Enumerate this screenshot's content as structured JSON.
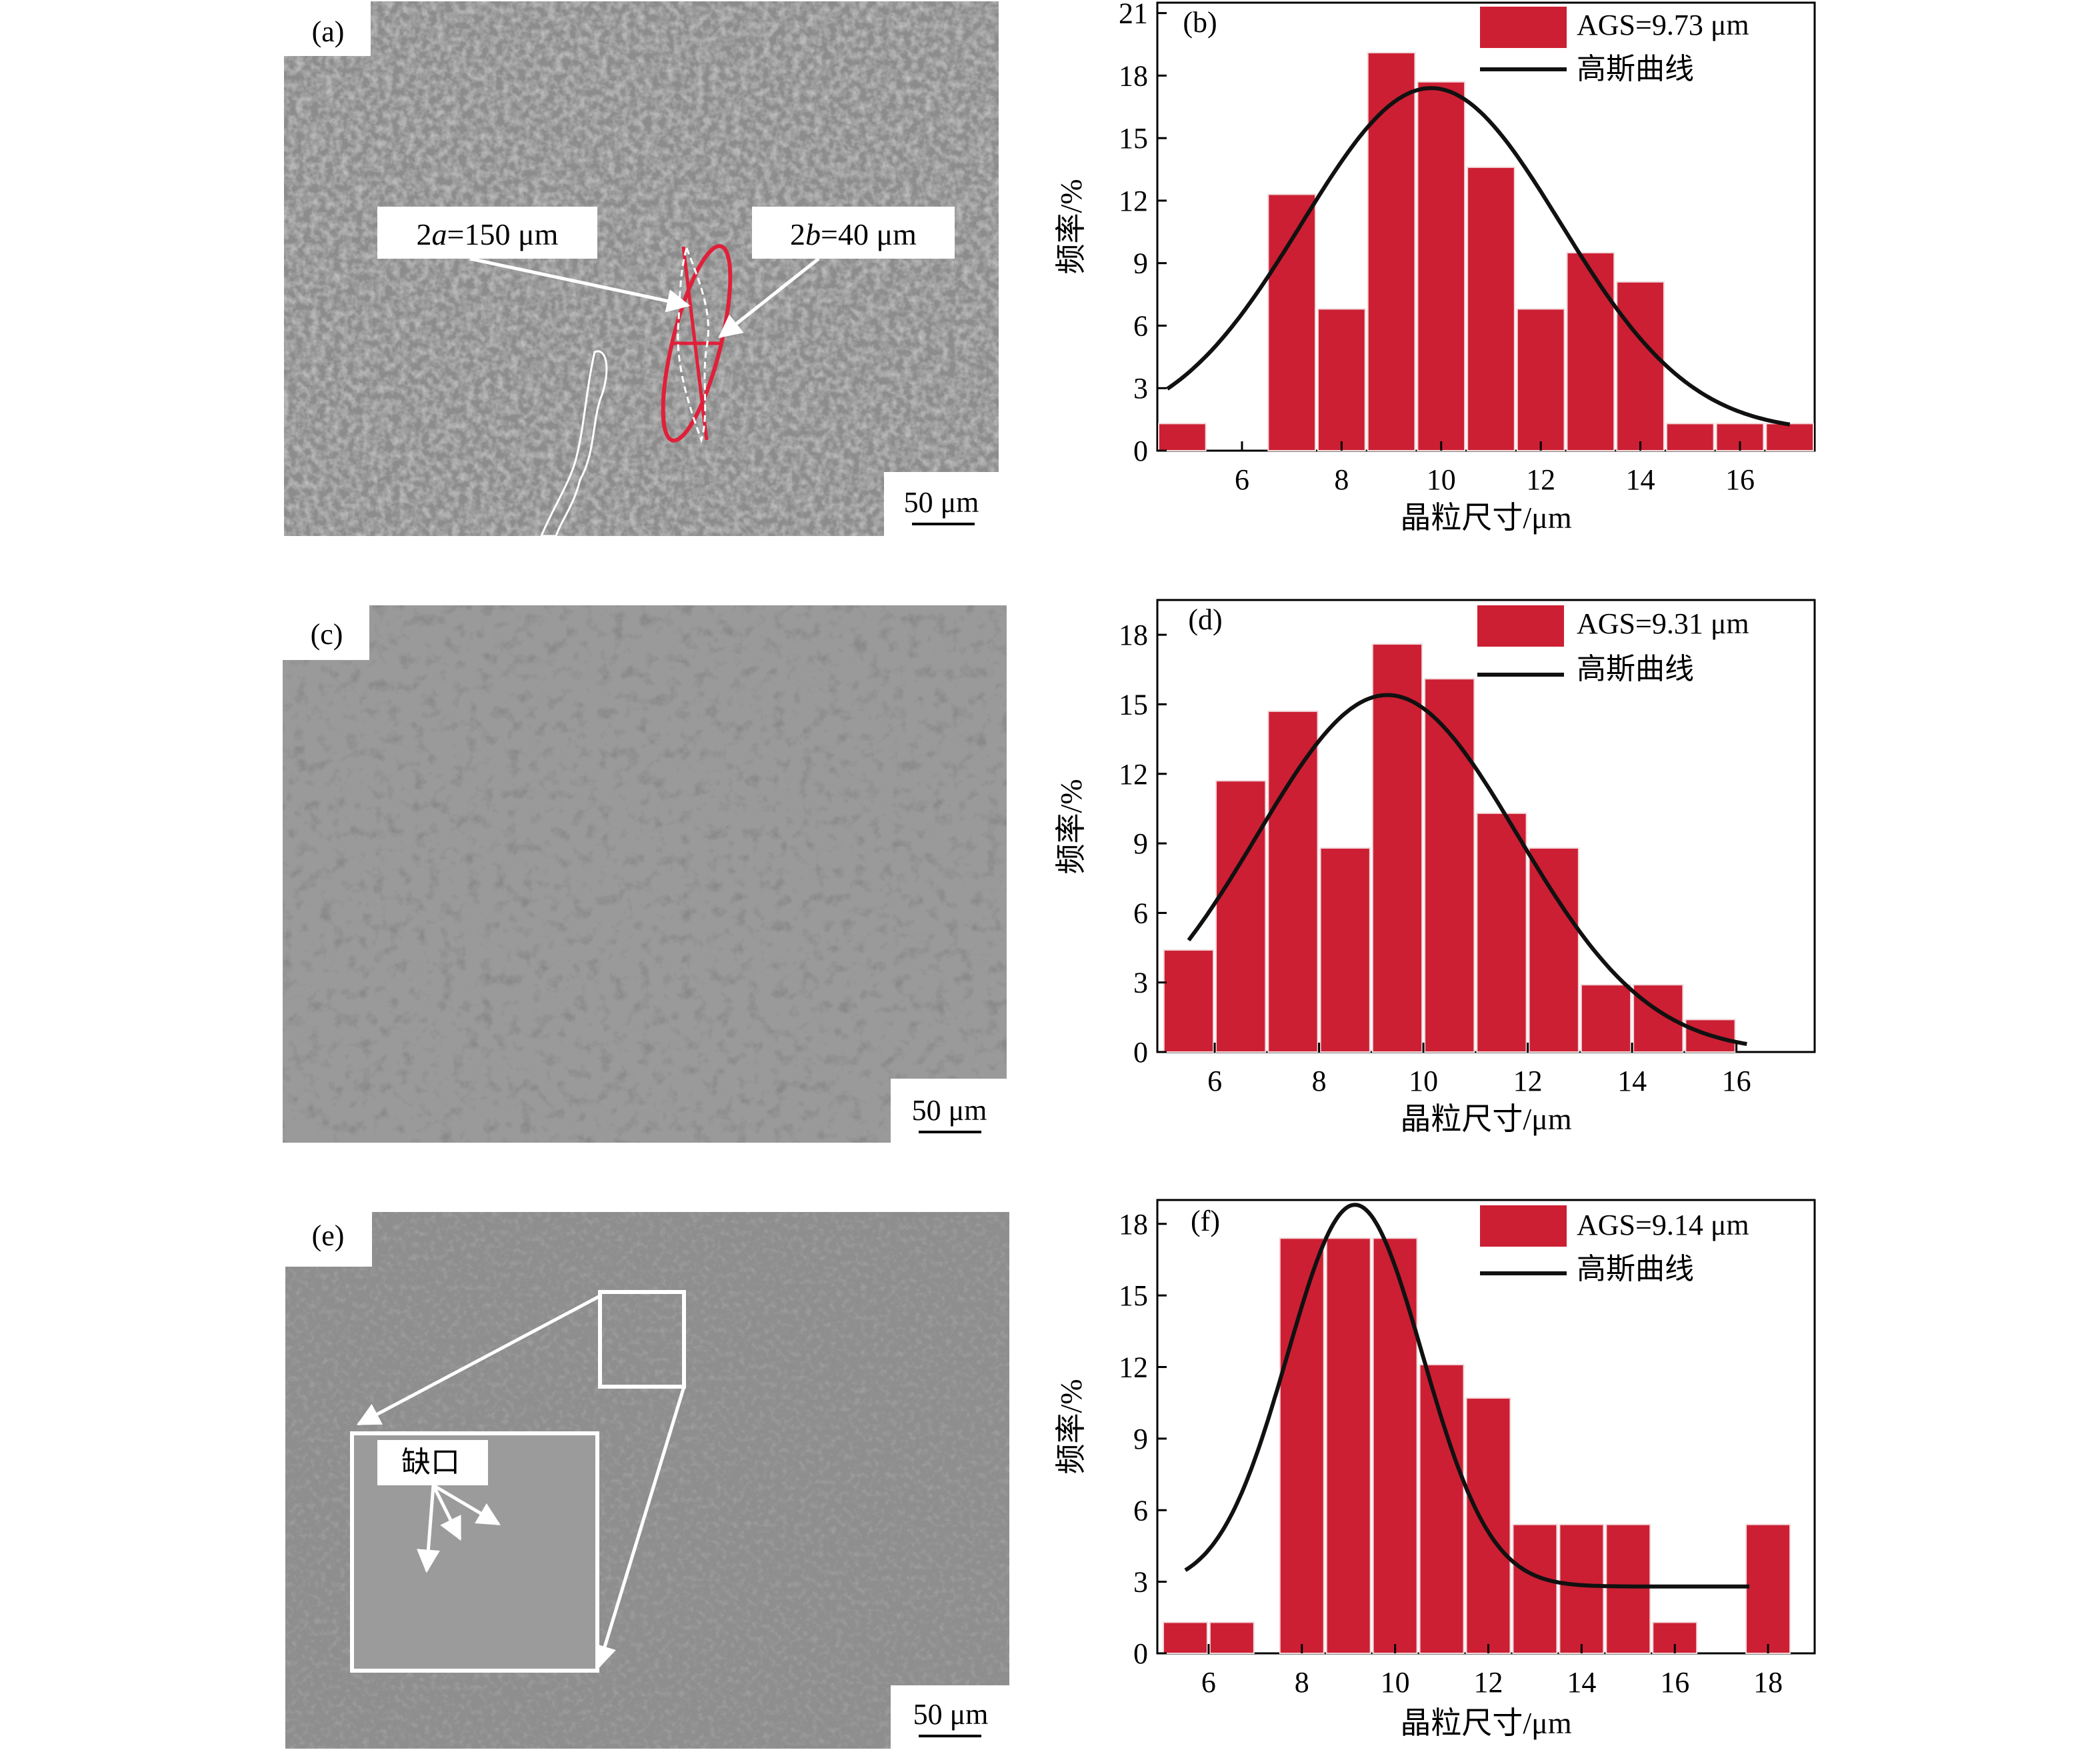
{
  "panels": [
    {
      "label": "(a)",
      "scale_label": "50 μm",
      "annotations": [
        "2",
        "a",
        "=150 μm",
        "2",
        "b",
        "=40 μm"
      ]
    },
    {
      "label": "(c)",
      "scale_label": "50 μm"
    },
    {
      "label": "(e)",
      "scale_label": "50 μm",
      "inset_label": "缺口"
    }
  ],
  "colors": {
    "bar": "#cc1f33",
    "curve": "#111111",
    "micrograph": "#8a8a8a",
    "annotation_red": "#e0203a"
  },
  "chart_data": [
    {
      "type": "bar",
      "panel_label": "(b)",
      "xlabel": "晶粒尺寸/μm",
      "ylabel": "频率/%",
      "xlim": [
        4.3,
        17.5
      ],
      "ylim": [
        0,
        21.5
      ],
      "xticks": [
        6,
        8,
        10,
        12,
        14,
        16
      ],
      "yticks": [
        0,
        3,
        6,
        9,
        12,
        15,
        18,
        21
      ],
      "bin_width": 1,
      "bars": [
        {
          "x": 4.8,
          "value": 1.3
        },
        {
          "x": 7.0,
          "value": 12.3
        },
        {
          "x": 8.0,
          "value": 6.8
        },
        {
          "x": 9.0,
          "value": 19.1
        },
        {
          "x": 10.0,
          "value": 17.7
        },
        {
          "x": 11.0,
          "value": 13.6
        },
        {
          "x": 12.0,
          "value": 6.8
        },
        {
          "x": 13.0,
          "value": 9.5
        },
        {
          "x": 14.0,
          "value": 8.1
        },
        {
          "x": 15.0,
          "value": 1.3
        },
        {
          "x": 16.0,
          "value": 1.3
        },
        {
          "x": 17.0,
          "value": 1.3
        }
      ],
      "curve": {
        "type": "gaussian",
        "mean": 9.8,
        "sigma": 2.6,
        "peak": 16.5,
        "offset": 0.9,
        "x_range": [
          4.5,
          17.0
        ]
      },
      "legend": {
        "bar_label": "AGS=9.73 μm",
        "curve_label": "高斯曲线",
        "position": "top-right"
      }
    },
    {
      "type": "bar",
      "panel_label": "(d)",
      "xlabel": "晶粒尺寸/μm",
      "ylabel": "频率/%",
      "xlim": [
        4.9,
        17.5
      ],
      "ylim": [
        0,
        19.5
      ],
      "xticks": [
        6,
        8,
        10,
        12,
        14,
        16
      ],
      "yticks": [
        0,
        3,
        6,
        9,
        12,
        15,
        18
      ],
      "bin_width": 1,
      "bars": [
        {
          "x": 5.5,
          "value": 4.4
        },
        {
          "x": 6.5,
          "value": 11.7
        },
        {
          "x": 7.5,
          "value": 14.7
        },
        {
          "x": 8.5,
          "value": 8.8
        },
        {
          "x": 9.5,
          "value": 17.6
        },
        {
          "x": 10.5,
          "value": 16.1
        },
        {
          "x": 11.5,
          "value": 10.3
        },
        {
          "x": 12.5,
          "value": 8.8
        },
        {
          "x": 13.5,
          "value": 2.9
        },
        {
          "x": 14.5,
          "value": 2.9
        },
        {
          "x": 15.5,
          "value": 1.4
        }
      ],
      "curve": {
        "type": "gaussian",
        "mean": 9.31,
        "sigma": 2.5,
        "peak": 15.4,
        "offset": 0,
        "x_range": [
          5.5,
          16.2
        ]
      },
      "legend": {
        "bar_label": "AGS=9.31 μm",
        "curve_label": "高斯曲线",
        "position": "top-right"
      }
    },
    {
      "type": "bar",
      "panel_label": "(f)",
      "xlabel": "晶粒尺寸/μm",
      "ylabel": "频率/%",
      "xlim": [
        4.9,
        19.0
      ],
      "ylim": [
        0,
        19.0
      ],
      "xticks": [
        6,
        8,
        10,
        12,
        14,
        16,
        18
      ],
      "yticks": [
        0,
        3,
        6,
        9,
        12,
        15,
        18
      ],
      "bin_width": 1,
      "bars": [
        {
          "x": 5.5,
          "value": 1.3
        },
        {
          "x": 6.5,
          "value": 1.3
        },
        {
          "x": 8.0,
          "value": 17.4
        },
        {
          "x": 9.0,
          "value": 17.4
        },
        {
          "x": 10.0,
          "value": 17.4
        },
        {
          "x": 11.0,
          "value": 12.1
        },
        {
          "x": 12.0,
          "value": 10.7
        },
        {
          "x": 13.0,
          "value": 5.4
        },
        {
          "x": 14.0,
          "value": 5.4
        },
        {
          "x": 15.0,
          "value": 5.4
        },
        {
          "x": 16.0,
          "value": 1.3
        },
        {
          "x": 18.0,
          "value": 5.4
        }
      ],
      "curve": {
        "type": "gaussian",
        "mean": 9.14,
        "sigma": 1.45,
        "peak": 16.0,
        "offset": 2.8,
        "x_range": [
          5.5,
          17.6
        ]
      },
      "legend": {
        "bar_label": "AGS=9.14 μm",
        "curve_label": "高斯曲线",
        "position": "top-right"
      }
    }
  ]
}
